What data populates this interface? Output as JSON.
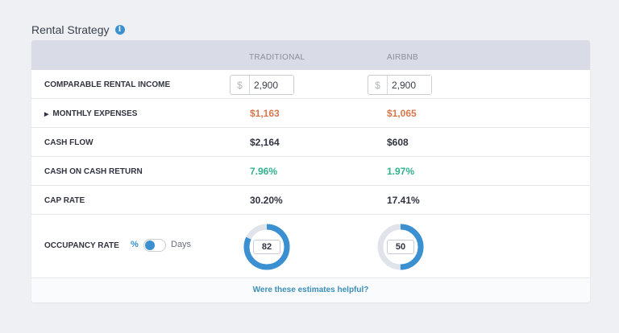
{
  "title": "Rental Strategy",
  "columns": [
    "TRADITIONAL",
    "AIRBNB"
  ],
  "rows": {
    "income": {
      "label": "COMPARABLE RENTAL INCOME",
      "currency": "$",
      "traditional": "2,900",
      "airbnb": "2,900"
    },
    "expenses": {
      "label": "MONTHLY EXPENSES",
      "traditional": "$1,163",
      "airbnb": "$1,065"
    },
    "cashflow": {
      "label": "CASH FLOW",
      "traditional": "$2,164",
      "airbnb": "$608"
    },
    "coc": {
      "label": "CASH ON CASH RETURN",
      "traditional": "7.96%",
      "airbnb": "1.97%"
    },
    "cap": {
      "label": "CAP RATE",
      "traditional": "30.20%",
      "airbnb": "17.41%"
    },
    "occupancy": {
      "label": "OCCUPANCY RATE",
      "unit_percent": "%",
      "unit_days": "Days",
      "toggle_on": "%",
      "traditional": "82",
      "airbnb": "50"
    }
  },
  "footer": "Were these estimates helpful?",
  "colors": {
    "accent": "#3a90d0",
    "orange": "#d9774c",
    "green": "#2fb38e",
    "track": "#e1e3ea"
  }
}
